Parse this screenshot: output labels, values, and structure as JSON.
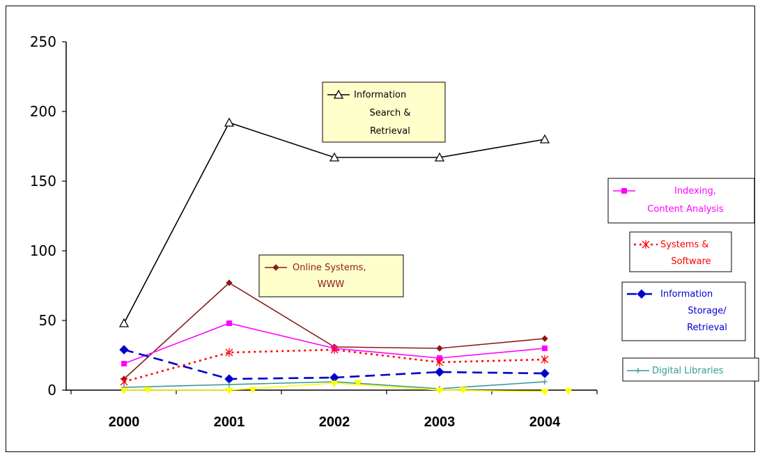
{
  "chart_data": {
    "type": "line",
    "categories": [
      "2000",
      "2001",
      "2002",
      "2003",
      "2004"
    ],
    "ylim": [
      0,
      250
    ],
    "y_ticks": [
      "0",
      "50",
      "100",
      "150",
      "200",
      "250"
    ],
    "grid": false,
    "series": [
      {
        "name": "Information Search & Retrieval",
        "label_lines": [
          "Information",
          "Search &",
          "Retrieval"
        ],
        "values": [
          48,
          192,
          167,
          167,
          180
        ],
        "color": "#000000",
        "dash": "none",
        "marker": "triangle"
      },
      {
        "name": "Online Systems, WWW",
        "label_lines": [
          "Online Systems,",
          "WWW"
        ],
        "values": [
          8,
          77,
          31,
          30,
          37
        ],
        "color": "#8b1a1a",
        "dash": "none",
        "marker": "diamond-small"
      },
      {
        "name": "Indexing, Content Analysis",
        "label_lines": [
          "Indexing,",
          "Content Analysis"
        ],
        "values": [
          19,
          48,
          30,
          23,
          30
        ],
        "color": "#ff00ff",
        "dash": "none",
        "marker": "square"
      },
      {
        "name": "Systems & Software",
        "label_lines": [
          "Systems &",
          "Software"
        ],
        "values": [
          6,
          27,
          29,
          20,
          22
        ],
        "color": "#ff0000",
        "dash": "dot",
        "marker": "asterisk"
      },
      {
        "name": "Information Storage/ Retrieval",
        "label_lines": [
          "Information",
          "Storage/",
          "Retrieval"
        ],
        "values": [
          29,
          8,
          9,
          13,
          12
        ],
        "color": "#0000cc",
        "dash": "dash",
        "marker": "diamond"
      },
      {
        "name": "Digital Libraries",
        "label_lines": [
          "Digital Libraries"
        ],
        "values": [
          2,
          4,
          6,
          1,
          6
        ],
        "color": "#339999",
        "dash": "none",
        "marker": "plus"
      },
      {
        "name": "",
        "label_lines": [],
        "values": [
          0,
          0,
          5,
          0,
          -1
        ],
        "color": "#ffff00",
        "dash": "none",
        "marker": "triangle-filled",
        "offset_markers": true
      }
    ]
  }
}
